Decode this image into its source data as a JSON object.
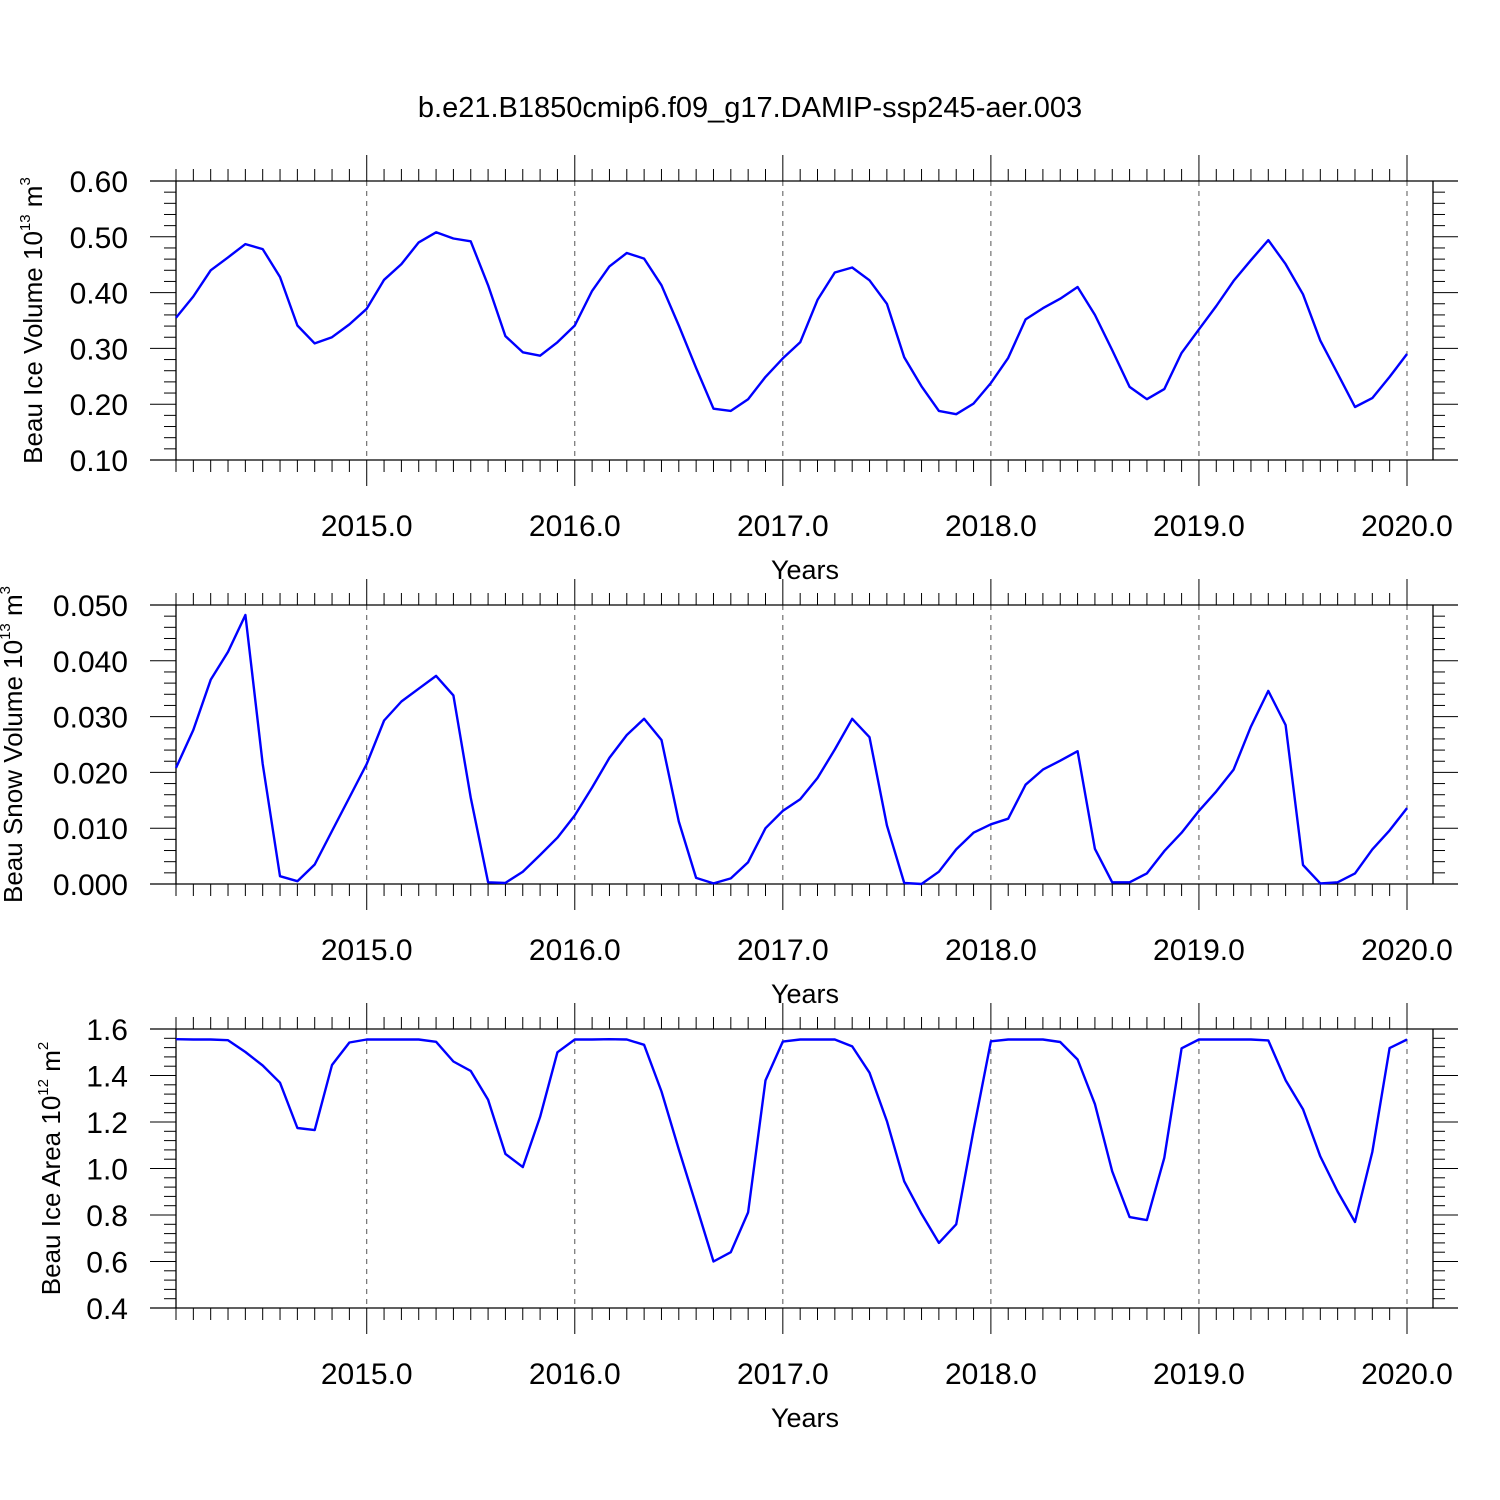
{
  "figure": {
    "title": "b.e21.B1850cmip6.f09_g17.DAMIP-ssp245-aer.003"
  },
  "chart_data": [
    {
      "type": "line",
      "ylabel": {
        "main": "Beau Ice Volume 10",
        "exponent": "13",
        "unit": " m",
        "unit_exponent": "3"
      },
      "xlabel": "Years",
      "xlim": [
        2014.0833,
        2020.125
      ],
      "ylim": [
        0.1,
        0.6
      ],
      "x_ticks": [
        "2015.0",
        "2016.0",
        "2017.0",
        "2018.0",
        "2019.0",
        "2020.0"
      ],
      "y_ticks": [
        "0.10",
        "0.20",
        "0.30",
        "0.40",
        "0.50",
        "0.60"
      ],
      "grid": "vertical dashed at major x ticks",
      "line_color": "#0000ff",
      "x_start": 2014.0833,
      "x_step": 0.0833333,
      "values": [
        0.355,
        0.393,
        0.44,
        0.463,
        0.487,
        0.478,
        0.428,
        0.341,
        0.309,
        0.32,
        0.343,
        0.371,
        0.423,
        0.451,
        0.49,
        0.508,
        0.497,
        0.492,
        0.413,
        0.322,
        0.293,
        0.287,
        0.311,
        0.341,
        0.403,
        0.447,
        0.471,
        0.461,
        0.413,
        0.341,
        0.265,
        0.192,
        0.188,
        0.209,
        0.249,
        0.282,
        0.311,
        0.387,
        0.436,
        0.445,
        0.422,
        0.38,
        0.284,
        0.232,
        0.188,
        0.182,
        0.201,
        0.238,
        0.283,
        0.352,
        0.372,
        0.389,
        0.41,
        0.36,
        0.297,
        0.231,
        0.209,
        0.227,
        0.292,
        0.334,
        0.376,
        0.421,
        0.458,
        0.494,
        0.451,
        0.397,
        0.314,
        0.255,
        0.195,
        0.211,
        0.249,
        0.29
      ]
    },
    {
      "type": "line",
      "ylabel": {
        "main": "Beau Snow Volume 10",
        "exponent": "13",
        "unit": " m",
        "unit_exponent": "3"
      },
      "xlabel": "Years",
      "xlim": [
        2014.0833,
        2020.125
      ],
      "ylim": [
        0.0,
        0.05
      ],
      "x_ticks": [
        "2015.0",
        "2016.0",
        "2017.0",
        "2018.0",
        "2019.0",
        "2020.0"
      ],
      "y_ticks": [
        "0.000",
        "0.010",
        "0.020",
        "0.030",
        "0.040",
        "0.050"
      ],
      "grid": "vertical dashed at major x ticks",
      "line_color": "#0000ff",
      "x_start": 2014.0833,
      "x_step": 0.0833333,
      "values": [
        0.0208,
        0.0276,
        0.0366,
        0.0416,
        0.0482,
        0.0215,
        0.0014,
        0.0005,
        0.0035,
        0.0095,
        0.0155,
        0.0215,
        0.0293,
        0.0327,
        0.035,
        0.0373,
        0.0338,
        0.0155,
        0.0003,
        0.0002,
        0.0022,
        0.0052,
        0.0083,
        0.0123,
        0.0173,
        0.0226,
        0.0267,
        0.0296,
        0.0258,
        0.0112,
        0.0011,
        0.0001,
        0.001,
        0.0039,
        0.01,
        0.0131,
        0.0152,
        0.019,
        0.0241,
        0.0296,
        0.0263,
        0.0105,
        0.0002,
        0.0,
        0.0022,
        0.0062,
        0.0092,
        0.0107,
        0.0117,
        0.0178,
        0.0205,
        0.0221,
        0.0238,
        0.0063,
        0.0003,
        0.0003,
        0.0019,
        0.0059,
        0.0092,
        0.0131,
        0.0166,
        0.0205,
        0.0282,
        0.0346,
        0.0285,
        0.0034,
        0.0001,
        0.0003,
        0.0019,
        0.0062,
        0.0096,
        0.0136
      ]
    },
    {
      "type": "line",
      "ylabel": {
        "main": "Beau Ice Area 10",
        "exponent": "12",
        "unit": " m",
        "unit_exponent": "2"
      },
      "xlabel": "Years",
      "xlim": [
        2014.0833,
        2020.125
      ],
      "ylim": [
        0.4,
        1.6
      ],
      "x_ticks": [
        "2015.0",
        "2016.0",
        "2017.0",
        "2018.0",
        "2019.0",
        "2020.0"
      ],
      "y_ticks": [
        "0.4",
        "0.6",
        "0.8",
        "1.0",
        "1.2",
        "1.4",
        "1.6"
      ],
      "grid": "vertical dashed at major x ticks",
      "line_color": "#0000ff",
      "x_start": 2014.0833,
      "x_step": 0.0833333,
      "values": [
        1.556,
        1.555,
        1.555,
        1.552,
        1.501,
        1.443,
        1.369,
        1.174,
        1.165,
        1.445,
        1.542,
        1.555,
        1.555,
        1.555,
        1.555,
        1.545,
        1.46,
        1.42,
        1.296,
        1.063,
        1.006,
        1.222,
        1.5,
        1.555,
        1.555,
        1.556,
        1.555,
        1.532,
        1.331,
        1.082,
        0.843,
        0.6,
        0.64,
        0.811,
        1.379,
        1.546,
        1.555,
        1.555,
        1.555,
        1.525,
        1.412,
        1.204,
        0.945,
        0.805,
        0.68,
        0.76,
        1.164,
        1.547,
        1.555,
        1.555,
        1.555,
        1.544,
        1.469,
        1.277,
        0.988,
        0.791,
        0.778,
        1.046,
        1.517,
        1.555,
        1.555,
        1.555,
        1.555,
        1.551,
        1.38,
        1.255,
        1.052,
        0.901,
        0.77,
        1.071,
        1.518,
        1.555
      ]
    }
  ]
}
